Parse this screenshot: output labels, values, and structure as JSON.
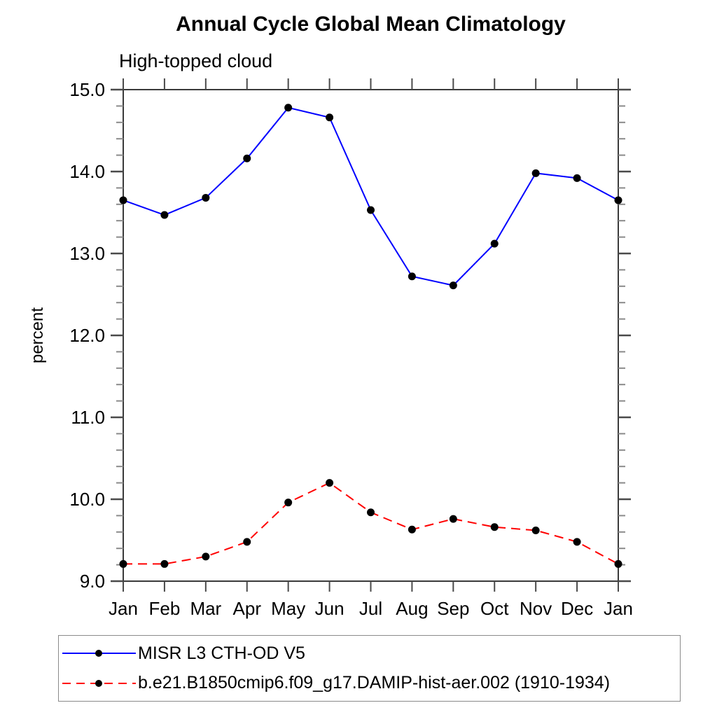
{
  "header": {
    "title": "Annual Cycle Global Mean Climatology",
    "subtitle": "High-topped cloud"
  },
  "chart_data": {
    "type": "line",
    "title": "Annual Cycle Global Mean Climatology",
    "subtitle": "High-topped cloud",
    "xlabel": "",
    "ylabel": "percent",
    "categories": [
      "Jan",
      "Feb",
      "Mar",
      "Apr",
      "May",
      "Jun",
      "Jul",
      "Aug",
      "Sep",
      "Oct",
      "Nov",
      "Dec",
      "Jan"
    ],
    "ylim": [
      9.0,
      15.0
    ],
    "y_major_tick_labels": [
      "9.0",
      "10.0",
      "11.0",
      "12.0",
      "13.0",
      "14.0",
      "15.0"
    ],
    "y_major_step": 1.0,
    "y_minor_step": 0.2,
    "grid": false,
    "legend_position": "bottom-left",
    "series": [
      {
        "name": "MISR L3 CTH-OD V5",
        "color": "#0000ff",
        "line_style": "solid",
        "marker": "filled-circle",
        "marker_color": "#000000",
        "values": [
          13.65,
          13.47,
          13.68,
          14.16,
          14.78,
          14.66,
          13.53,
          12.72,
          12.61,
          13.12,
          13.98,
          13.92,
          13.65
        ]
      },
      {
        "name": "b.e21.B1850cmip6.f09_g17.DAMIP-hist-aer.002 (1910-1934)",
        "color": "#ff0000",
        "line_style": "dashed",
        "marker": "filled-circle",
        "marker_color": "#000000",
        "values": [
          9.21,
          9.21,
          9.3,
          9.48,
          9.96,
          10.2,
          9.84,
          9.63,
          9.76,
          9.66,
          9.62,
          9.48,
          9.21
        ]
      }
    ]
  },
  "colors": {
    "frame": "#3a3a3a",
    "major_tick": "#4a4a4a",
    "minor_tick": "#8a8a8a",
    "text": "#000000",
    "legend_border": "#8a8a8a"
  }
}
